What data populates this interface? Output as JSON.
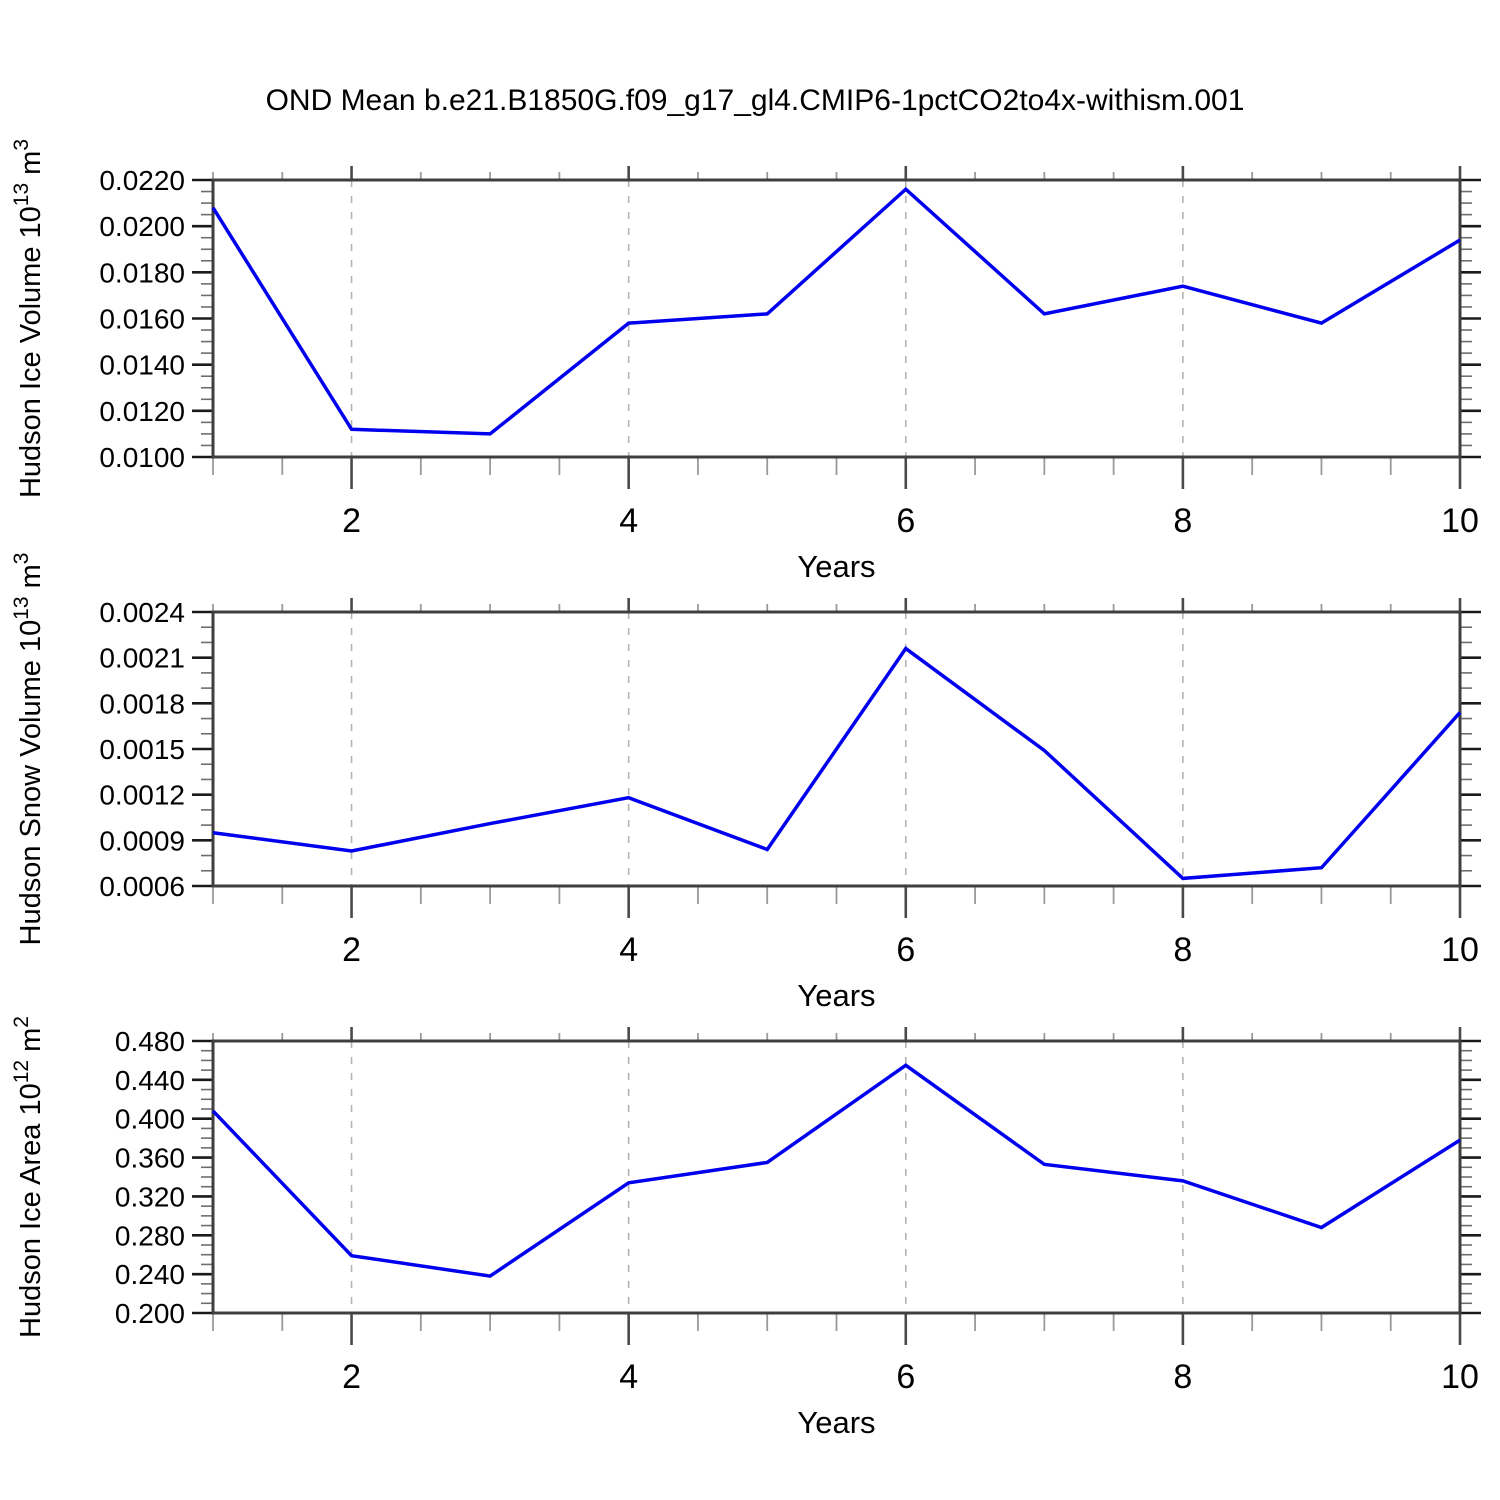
{
  "title": "OND Mean b.e21.B1850G.f09_g17_gl4.CMIP6-1pctCO2to4x-withism.001",
  "style": {
    "line_color": "#0000EE",
    "frame_color": "#3f3f3f",
    "major_tick_color": "#1a1a1a",
    "minor_tick_color": "#6e6e6e",
    "grid_color": "#b3b3b3",
    "text_color": "#000000"
  },
  "chart_data": [
    {
      "type": "line",
      "name": "hudson-ice-volume",
      "ylabel": "Hudson Ice Volume 10^13 m^3",
      "ylabel_runs": [
        {
          "t": "Hudson Ice Volume 10"
        },
        {
          "t": "13",
          "sup": true
        },
        {
          "t": " m"
        },
        {
          "t": "3",
          "sup": true
        }
      ],
      "xlabel": "Years",
      "x": [
        1,
        2,
        3,
        4,
        5,
        6,
        7,
        8,
        9,
        10
      ],
      "values": [
        0.0208,
        0.0112,
        0.011,
        0.0158,
        0.0162,
        0.0216,
        0.0162,
        0.0174,
        0.0158,
        0.0194
      ],
      "ylim": [
        0.01,
        0.022
      ],
      "ytick_step": 0.002,
      "yminor_step": 0.0005,
      "ydecimals": 4,
      "xlim": [
        1,
        10
      ],
      "xticks": [
        2,
        4,
        6,
        8,
        10
      ],
      "xminor_step": 0.5,
      "grid_x": [
        2,
        4,
        6,
        8
      ],
      "grid_on": true,
      "legend": null
    },
    {
      "type": "line",
      "name": "hudson-snow-volume",
      "ylabel": "Hudson Snow Volume 10^13 m^3",
      "ylabel_runs": [
        {
          "t": "Hudson Snow Volume 10"
        },
        {
          "t": "13",
          "sup": true
        },
        {
          "t": " m"
        },
        {
          "t": "3",
          "sup": true
        }
      ],
      "xlabel": "Years",
      "x": [
        1,
        2,
        3,
        4,
        5,
        6,
        7,
        8,
        9,
        10
      ],
      "values": [
        0.00095,
        0.00083,
        0.00101,
        0.00118,
        0.00084,
        0.00216,
        0.00149,
        0.00065,
        0.00072,
        0.00174
      ],
      "ylim": [
        0.0006,
        0.0024
      ],
      "ytick_step": 0.0003,
      "yminor_step": 0.0001,
      "ydecimals": 4,
      "xlim": [
        1,
        10
      ],
      "xticks": [
        2,
        4,
        6,
        8,
        10
      ],
      "xminor_step": 0.5,
      "grid_x": [
        2,
        4,
        6,
        8
      ],
      "grid_on": true,
      "legend": null
    },
    {
      "type": "line",
      "name": "hudson-ice-area",
      "ylabel": "Hudson Ice Area 10^12 m^2",
      "ylabel_runs": [
        {
          "t": "Hudson Ice Area 10"
        },
        {
          "t": "12",
          "sup": true
        },
        {
          "t": " m"
        },
        {
          "t": "2",
          "sup": true
        }
      ],
      "xlabel": "Years",
      "x": [
        1,
        2,
        3,
        4,
        5,
        6,
        7,
        8,
        9,
        10
      ],
      "values": [
        0.408,
        0.259,
        0.238,
        0.334,
        0.355,
        0.455,
        0.353,
        0.336,
        0.288,
        0.378
      ],
      "ylim": [
        0.2,
        0.48
      ],
      "ytick_step": 0.04,
      "yminor_step": 0.01,
      "ydecimals": 3,
      "xlim": [
        1,
        10
      ],
      "xticks": [
        2,
        4,
        6,
        8,
        10
      ],
      "xminor_step": 0.5,
      "grid_x": [
        2,
        4,
        6,
        8
      ],
      "grid_on": true,
      "legend": null
    }
  ]
}
